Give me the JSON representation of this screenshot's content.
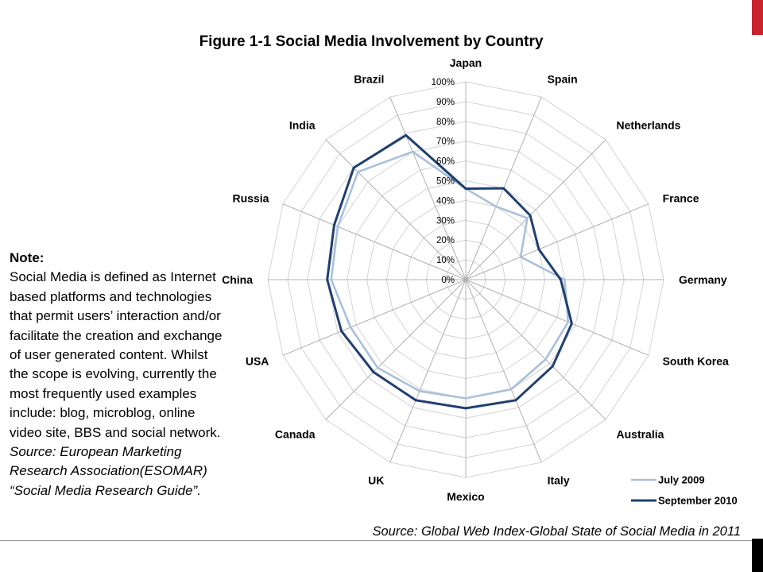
{
  "note": {
    "heading": "Note:",
    "body": "Social Media is defined as Internet based platforms and technologies that permit users’ interaction and/or facilitate the creation and exchange of user generated content. Whilst the scope is evolving, currently the most frequently used examples include: blog, microblog, online video site, BBS and social network.",
    "source": "Source: European Marketing Research Association(ESOMAR) “Social Media Research Guide”."
  },
  "source_line": "Source: Global Web Index-Global State of Social Media in 2011",
  "colors": {
    "accent_red": "#c8232c",
    "series_2009": "#a9c0dd",
    "series_2010": "#1f3f70"
  },
  "chart_data": {
    "type": "radar",
    "title": "Figure 1-1 Social Media Involvement by Country",
    "categories": [
      "Japan",
      "Spain",
      "Netherlands",
      "France",
      "Germany",
      "South Korea",
      "Australia",
      "Italy",
      "Mexico",
      "UK",
      "Canada",
      "USA",
      "China",
      "Russia",
      "India",
      "Brazil"
    ],
    "r_ticks": [
      "0%",
      "10%",
      "20%",
      "30%",
      "40%",
      "50%",
      "60%",
      "70%",
      "80%",
      "90%",
      "100%"
    ],
    "rlim": [
      0,
      100
    ],
    "grid": true,
    "legend_position": "bottom-right",
    "series": [
      {
        "name": "July 2009",
        "color": "#a9c0dd",
        "values": [
          46,
          40,
          44,
          30,
          50,
          56,
          57,
          60,
          60,
          61,
          63,
          63,
          68,
          70,
          77,
          70
        ]
      },
      {
        "name": "September 2010",
        "color": "#1f3f70",
        "values": [
          46,
          50,
          46,
          40,
          48,
          58,
          62,
          66,
          65,
          66,
          66,
          68,
          70,
          72,
          80,
          79
        ]
      }
    ]
  }
}
